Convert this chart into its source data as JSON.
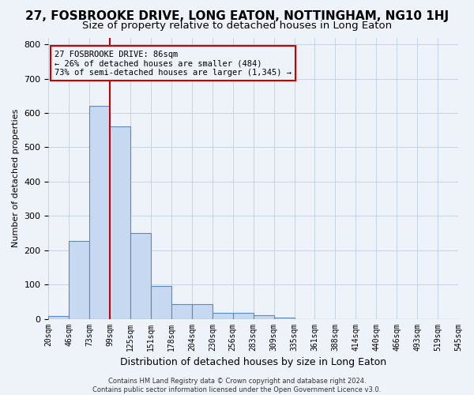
{
  "title": "27, FOSBROOKE DRIVE, LONG EATON, NOTTINGHAM, NG10 1HJ",
  "subtitle": "Size of property relative to detached houses in Long Eaton",
  "xlabel": "Distribution of detached houses by size in Long Eaton",
  "ylabel": "Number of detached properties",
  "footer_line1": "Contains HM Land Registry data © Crown copyright and database right 2024.",
  "footer_line2": "Contains public sector information licensed under the Open Government Licence v3.0.",
  "bin_labels": [
    "20sqm",
    "46sqm",
    "73sqm",
    "99sqm",
    "125sqm",
    "151sqm",
    "178sqm",
    "204sqm",
    "230sqm",
    "256sqm",
    "283sqm",
    "309sqm",
    "335sqm",
    "361sqm",
    "388sqm",
    "414sqm",
    "440sqm",
    "466sqm",
    "493sqm",
    "519sqm",
    "545sqm"
  ],
  "bar_values": [
    8,
    228,
    620,
    560,
    250,
    95,
    42,
    42,
    18,
    18,
    10,
    3,
    0,
    0,
    0,
    0,
    0,
    0,
    0,
    0
  ],
  "bar_color": "#c6d9f0",
  "bar_edge_color": "#5a8abf",
  "ylim": [
    0,
    820
  ],
  "yticks": [
    0,
    100,
    200,
    300,
    400,
    500,
    600,
    700,
    800
  ],
  "property_bin_index": 2,
  "red_line_color": "#cc0000",
  "annotation_text": "27 FOSBROOKE DRIVE: 86sqm\n← 26% of detached houses are smaller (484)\n73% of semi-detached houses are larger (1,345) →",
  "background_color": "#eef2f9",
  "grid_color": "#b8c8de",
  "title_fontsize": 11,
  "subtitle_fontsize": 9.5
}
